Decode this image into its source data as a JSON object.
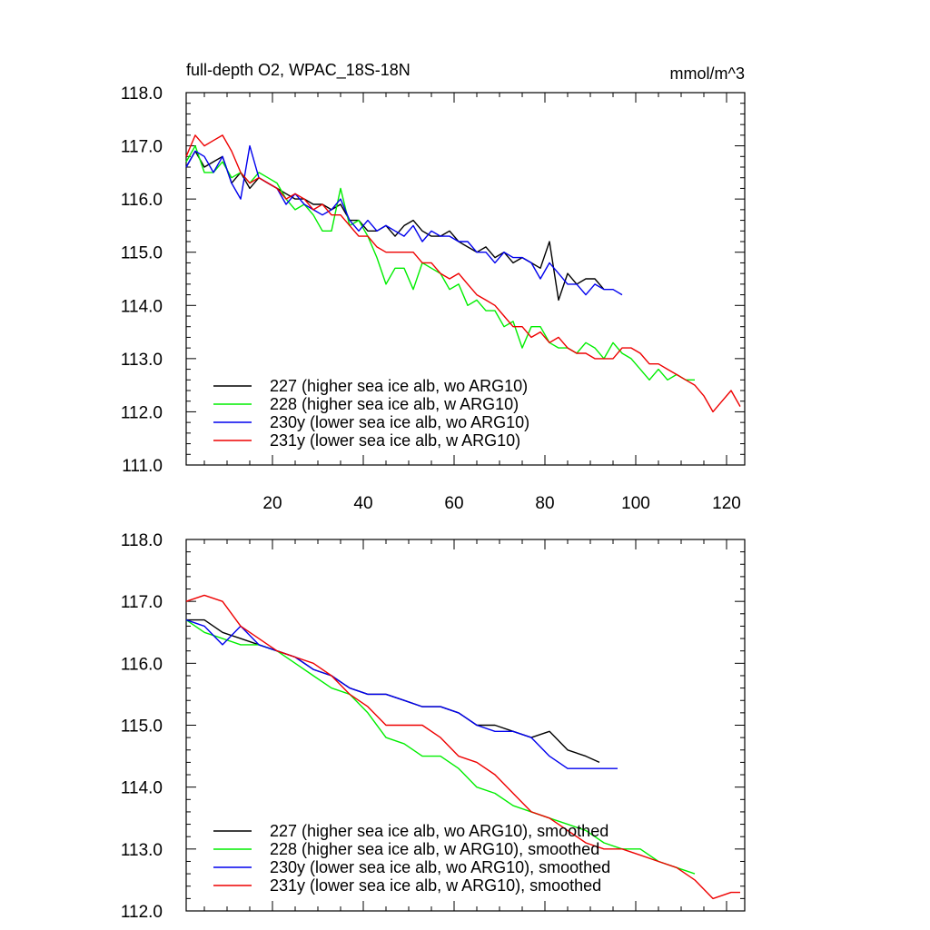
{
  "chart_data": [
    {
      "type": "line",
      "title": "full-depth O2, WPAC_18S-18N",
      "units": "mmol/m^3",
      "xlim": [
        1,
        124
      ],
      "ylim": [
        111,
        118
      ],
      "yticks": [
        "111.0",
        "112.0",
        "113.0",
        "114.0",
        "115.0",
        "116.0",
        "117.0",
        "118.0"
      ],
      "xticks": [
        "20",
        "40",
        "60",
        "80",
        "100",
        "120"
      ],
      "legend": "bottom-left",
      "series": [
        {
          "name": "227 (higher sea ice alb, wo ARG10)",
          "color": "#000000",
          "x": [
            1,
            3,
            5,
            7,
            9,
            11,
            13,
            15,
            17,
            19,
            21,
            23,
            25,
            27,
            29,
            31,
            33,
            35,
            37,
            39,
            41,
            43,
            45,
            47,
            49,
            51,
            53,
            55,
            57,
            59,
            61,
            63,
            65,
            67,
            69,
            71,
            73,
            75,
            77,
            79,
            81,
            83,
            85,
            87,
            89,
            91,
            93
          ],
          "y": [
            116.6,
            116.9,
            116.6,
            116.7,
            116.8,
            116.3,
            116.5,
            116.2,
            116.4,
            116.3,
            116.2,
            116.1,
            116.0,
            116.0,
            115.9,
            115.9,
            115.8,
            115.9,
            115.6,
            115.6,
            115.4,
            115.4,
            115.5,
            115.3,
            115.5,
            115.6,
            115.4,
            115.3,
            115.3,
            115.4,
            115.2,
            115.1,
            115.0,
            115.1,
            114.9,
            115.0,
            114.8,
            114.9,
            114.8,
            114.7,
            115.2,
            114.1,
            114.6,
            114.4,
            114.5,
            114.5,
            114.3
          ]
        },
        {
          "name": "228 (higher sea ice alb, w ARG10)",
          "color": "#00ee00",
          "x": [
            1,
            3,
            5,
            7,
            9,
            11,
            13,
            15,
            17,
            19,
            21,
            23,
            25,
            27,
            29,
            31,
            33,
            35,
            37,
            39,
            41,
            43,
            45,
            47,
            49,
            51,
            53,
            55,
            57,
            59,
            61,
            63,
            65,
            67,
            69,
            71,
            73,
            75,
            77,
            79,
            81,
            83,
            85,
            87,
            89,
            91,
            93,
            95,
            97,
            99,
            101,
            103,
            105,
            107,
            109,
            111,
            113
          ],
          "y": [
            116.7,
            117.0,
            116.5,
            116.5,
            116.7,
            116.4,
            116.5,
            116.3,
            116.5,
            116.4,
            116.3,
            116.0,
            115.8,
            115.9,
            115.7,
            115.4,
            115.4,
            116.2,
            115.5,
            115.6,
            115.3,
            114.9,
            114.4,
            114.7,
            114.7,
            114.3,
            114.8,
            114.7,
            114.6,
            114.3,
            114.4,
            114.0,
            114.1,
            113.9,
            113.9,
            113.6,
            113.7,
            113.2,
            113.6,
            113.6,
            113.3,
            113.2,
            113.2,
            113.1,
            113.3,
            113.2,
            113.0,
            113.3,
            113.1,
            113.0,
            112.8,
            112.6,
            112.8,
            112.6,
            112.7,
            112.6,
            112.6
          ]
        },
        {
          "name": "230y (lower sea ice alb, wo ARG10)",
          "color": "#0000ee",
          "x": [
            1,
            3,
            5,
            7,
            9,
            11,
            13,
            15,
            17,
            19,
            21,
            23,
            25,
            27,
            29,
            31,
            33,
            35,
            37,
            39,
            41,
            43,
            45,
            47,
            49,
            51,
            53,
            55,
            57,
            59,
            61,
            63,
            65,
            67,
            69,
            71,
            73,
            75,
            77,
            79,
            81,
            83,
            85,
            87,
            89,
            91,
            93,
            95,
            97
          ],
          "y": [
            116.6,
            116.9,
            116.8,
            116.5,
            116.8,
            116.3,
            116.0,
            117.0,
            116.4,
            116.3,
            116.2,
            115.9,
            116.1,
            115.9,
            115.8,
            115.7,
            115.8,
            116.0,
            115.6,
            115.4,
            115.6,
            115.4,
            115.5,
            115.4,
            115.3,
            115.5,
            115.2,
            115.4,
            115.3,
            115.3,
            115.2,
            115.2,
            115.0,
            115.0,
            114.8,
            115.0,
            114.9,
            114.9,
            114.8,
            114.5,
            114.8,
            114.6,
            114.4,
            114.4,
            114.2,
            114.4,
            114.3,
            114.3,
            114.2
          ]
        },
        {
          "name": "231y (lower sea ice alb, w ARG10)",
          "color": "#ee0000",
          "x": [
            1,
            3,
            5,
            7,
            9,
            11,
            13,
            15,
            17,
            19,
            21,
            23,
            25,
            27,
            29,
            31,
            33,
            35,
            37,
            39,
            41,
            43,
            45,
            47,
            49,
            51,
            53,
            55,
            57,
            59,
            61,
            63,
            65,
            67,
            69,
            71,
            73,
            75,
            77,
            79,
            81,
            83,
            85,
            87,
            89,
            91,
            93,
            95,
            97,
            99,
            101,
            103,
            105,
            107,
            109,
            111,
            113,
            115,
            117,
            119,
            121,
            123
          ],
          "y": [
            116.8,
            117.2,
            117.0,
            117.1,
            117.2,
            116.9,
            116.5,
            116.3,
            116.4,
            116.3,
            116.2,
            116.0,
            116.1,
            116.0,
            115.8,
            115.9,
            115.7,
            115.7,
            115.5,
            115.3,
            115.3,
            115.1,
            115.0,
            115.0,
            115.0,
            115.0,
            114.8,
            114.8,
            114.6,
            114.5,
            114.6,
            114.4,
            114.2,
            114.1,
            114.0,
            113.8,
            113.6,
            113.6,
            113.4,
            113.5,
            113.3,
            113.4,
            113.2,
            113.1,
            113.1,
            113.0,
            113.0,
            113.0,
            113.2,
            113.2,
            113.1,
            112.9,
            112.9,
            112.8,
            112.7,
            112.6,
            112.5,
            112.3,
            112.0,
            112.2,
            112.4,
            112.1
          ]
        }
      ]
    },
    {
      "type": "line",
      "xlim": [
        1,
        124
      ],
      "ylim": [
        112,
        118
      ],
      "yticks": [
        "112.0",
        "113.0",
        "114.0",
        "115.0",
        "116.0",
        "117.0",
        "118.0"
      ],
      "legend": "bottom-left",
      "series": [
        {
          "name": "227 (higher sea ice alb, wo ARG10), smoothed",
          "color": "#000000",
          "x": [
            1,
            5,
            9,
            13,
            17,
            21,
            25,
            29,
            33,
            37,
            41,
            45,
            49,
            53,
            57,
            61,
            65,
            69,
            73,
            77,
            81,
            85,
            89,
            92
          ],
          "y": [
            116.7,
            116.7,
            116.5,
            116.4,
            116.3,
            116.2,
            116.1,
            115.9,
            115.8,
            115.6,
            115.5,
            115.5,
            115.4,
            115.3,
            115.3,
            115.2,
            115.0,
            115.0,
            114.9,
            114.8,
            114.9,
            114.6,
            114.5,
            114.4
          ]
        },
        {
          "name": "228 (higher sea ice alb, w ARG10), smoothed",
          "color": "#00ee00",
          "x": [
            1,
            5,
            9,
            13,
            17,
            21,
            25,
            29,
            33,
            37,
            41,
            45,
            49,
            53,
            57,
            61,
            65,
            69,
            73,
            77,
            81,
            85,
            89,
            93,
            97,
            101,
            105,
            109,
            113
          ],
          "y": [
            116.7,
            116.5,
            116.4,
            116.3,
            116.3,
            116.2,
            116.0,
            115.8,
            115.6,
            115.5,
            115.2,
            114.8,
            114.7,
            114.5,
            114.5,
            114.3,
            114.0,
            113.9,
            113.7,
            113.6,
            113.5,
            113.4,
            113.3,
            113.1,
            113.0,
            113.0,
            112.8,
            112.7,
            112.6
          ]
        },
        {
          "name": "230y (lower sea ice alb, wo ARG10), smoothed",
          "color": "#0000ee",
          "x": [
            1,
            5,
            9,
            13,
            17,
            21,
            25,
            29,
            33,
            37,
            41,
            45,
            49,
            53,
            57,
            61,
            65,
            69,
            73,
            77,
            81,
            85,
            89,
            93,
            96
          ],
          "y": [
            116.7,
            116.6,
            116.3,
            116.6,
            116.3,
            116.2,
            116.1,
            115.9,
            115.8,
            115.6,
            115.5,
            115.5,
            115.4,
            115.3,
            115.3,
            115.2,
            115.0,
            114.9,
            114.9,
            114.8,
            114.5,
            114.3,
            114.3,
            114.3,
            114.3
          ]
        },
        {
          "name": "231y (lower sea ice alb, w ARG10), smoothed",
          "color": "#ee0000",
          "x": [
            1,
            5,
            9,
            13,
            17,
            21,
            25,
            29,
            33,
            37,
            41,
            45,
            49,
            53,
            57,
            61,
            65,
            69,
            73,
            77,
            81,
            85,
            89,
            93,
            97,
            101,
            105,
            109,
            113,
            117,
            121,
            123
          ],
          "y": [
            117.0,
            117.1,
            117.0,
            116.6,
            116.4,
            116.2,
            116.1,
            116.0,
            115.8,
            115.5,
            115.3,
            115.0,
            115.0,
            115.0,
            114.8,
            114.5,
            114.4,
            114.2,
            113.9,
            113.6,
            113.5,
            113.3,
            113.1,
            113.0,
            113.0,
            112.9,
            112.8,
            112.7,
            112.5,
            112.2,
            112.3,
            112.3
          ]
        }
      ]
    }
  ]
}
